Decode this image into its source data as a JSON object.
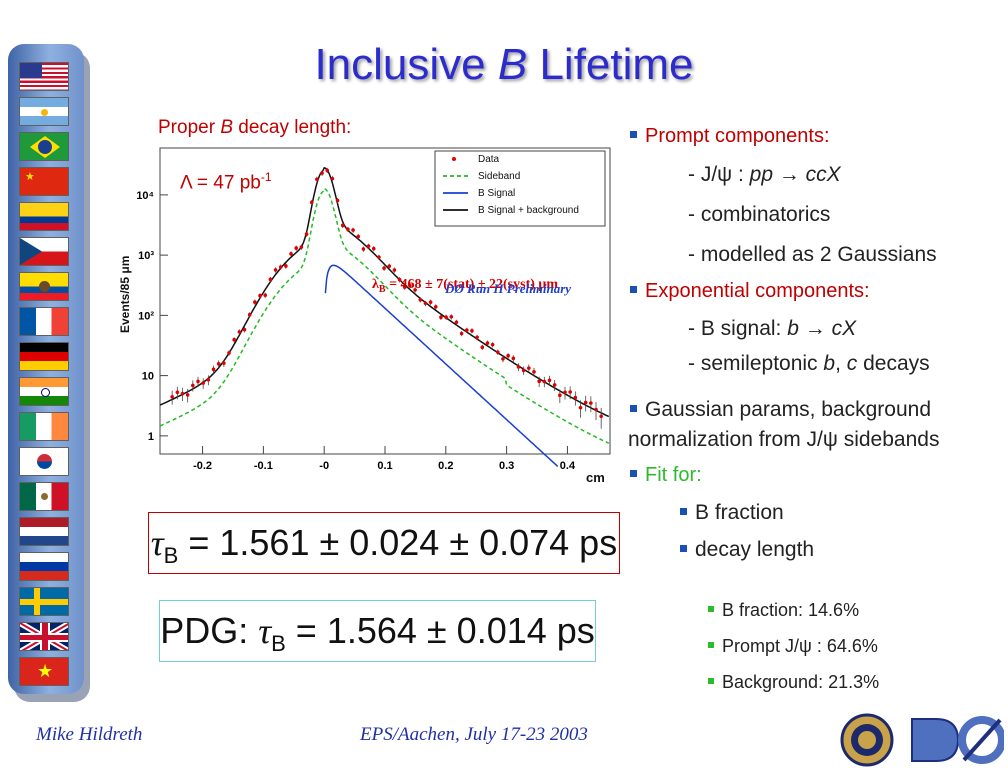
{
  "slide": {
    "title_main": "Inclusive ",
    "title_italic": "B",
    "title_rest": " Lifetime"
  },
  "plot_caption": {
    "pre": "Proper ",
    "italic": "B",
    "post": " decay length:"
  },
  "luminosity": {
    "text": "Λ = 47 pb",
    "sup": "-1"
  },
  "chart_data": {
    "type": "scatter",
    "ylabel": "Events/85 μm",
    "xlabel": "cm",
    "yscale": "log",
    "xlim": [
      -0.27,
      0.47
    ],
    "ylim": [
      0.5,
      60000
    ],
    "x_ticks": [
      "-0.2",
      "-0.1",
      "-0",
      "0.1",
      "0.2",
      "0.3",
      "0.4"
    ],
    "y_ticks": [
      "1",
      "10",
      "10²",
      "10³",
      "10⁴"
    ],
    "legend": [
      "Data",
      "Sideband",
      "B Signal",
      "B Signal + background"
    ],
    "legend_position": "top-right",
    "annotation_lambda": "λ",
    "annotation_lambda_sub": "B",
    "annotation_value": " = 468 ± 7(stat) ± 22(syst) μm",
    "preliminary": "DØ  Run II Preliminary",
    "colors": {
      "data": "#e00000",
      "sideband": "#22bb22",
      "signal": "#1a3fd0",
      "total": "#111111"
    }
  },
  "bullets": {
    "prompt": {
      "title": "Prompt components:",
      "l1a": "- J/ψ : ",
      "l1b": "pp → ccX",
      "l2": "- combinatorics",
      "l3": "- modelled as 2 Gaussians"
    },
    "expo": {
      "title": "Exponential components:",
      "l1a": "- B signal: ",
      "l1b": "b → cX",
      "l2a": "- semileptonic ",
      "l2b": "b",
      "l2c": ", ",
      "l2d": "c",
      "l2e": " decays"
    },
    "gauss": {
      "l1": "Gaussian params, background",
      "l2": "normalization from J/ψ sidebands"
    },
    "fit": {
      "title": "Fit for:",
      "i1": "B fraction",
      "i2": "decay length"
    },
    "results": {
      "r1": "B fraction: 14.6%",
      "r2": "Prompt J/ψ : 64.6%",
      "r3": "Background: 21.3%"
    }
  },
  "eq1": {
    "tau": "τ",
    "sub": "B",
    "rest": " = 1.561 ± 0.024 ± 0.074 ps"
  },
  "eq2": {
    "pre": "PDG: ",
    "tau": "τ",
    "sub": "B",
    "rest": " = 1.564 ± 0.014 ps"
  },
  "footer": {
    "author": "Mike Hildreth",
    "event": "EPS/Aachen, July 17-23 2003"
  },
  "flags": [
    "usa-flag",
    "argentina-flag",
    "brazil-flag",
    "china-flag",
    "colombia-flag",
    "czech-flag",
    "ecuador-flag",
    "france-flag",
    "germany-flag",
    "india-flag",
    "ireland-flag",
    "korea-flag",
    "mexico-flag",
    "netherlands-flag",
    "russia-flag",
    "sweden-flag",
    "uk-flag",
    "vietnam-flag"
  ]
}
